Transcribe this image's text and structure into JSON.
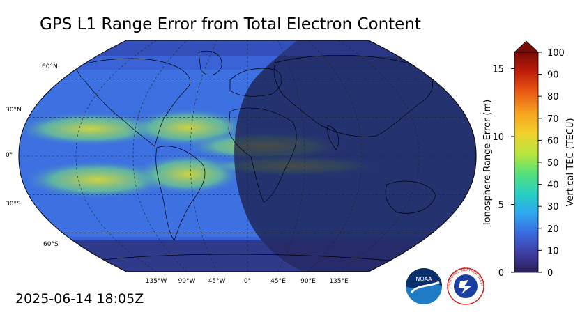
{
  "title": "GPS L1 Range Error from Total Electron Content",
  "timestamp": "2025-06-14 18:05Z",
  "map": {
    "projection": "robinson",
    "lat_labels": [
      "60°N",
      "30°N",
      "0°",
      "30°S",
      "60°S"
    ],
    "lon_labels": [
      "135°W",
      "90°W",
      "45°W",
      "0°",
      "45°E",
      "90°E",
      "135°E"
    ],
    "gridlines": "dashed",
    "nightside": "eastern hemisphere (Europe, Africa, Asia, Australia) shaded darker",
    "colors": {
      "ocean_base": "#3a63d8",
      "equatorial_band": "#d9d93a",
      "night_shade": "#1e1e4a"
    }
  },
  "colorbar": {
    "left_label": "Ionosphere Range Error (m)",
    "right_label": "Vertical TEC (TECU)",
    "left_ticks": [
      "0",
      "5",
      "10",
      "15"
    ],
    "right_ticks": [
      "0",
      "10",
      "20",
      "30",
      "40",
      "50",
      "60",
      "70",
      "80",
      "90",
      "100"
    ],
    "extend": "max",
    "stops": [
      "#2b1d57",
      "#3f3fa6",
      "#3a6be0",
      "#2ea9f0",
      "#27d0c0",
      "#57e07a",
      "#b8e63c",
      "#f0d12e",
      "#f7a51f",
      "#ea5a14",
      "#bf1d0a",
      "#7a0a05"
    ]
  },
  "logos": {
    "noaa": "NOAA",
    "nws": "NATIONAL WEATHER SERVICE"
  }
}
